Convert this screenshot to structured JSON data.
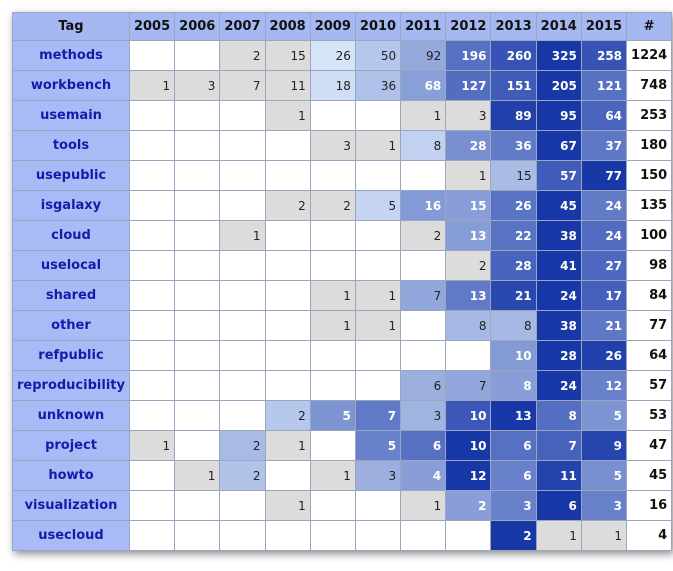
{
  "table": {
    "columns": [
      "Tag",
      2005,
      2006,
      2007,
      2008,
      2009,
      2010,
      2011,
      2012,
      2013,
      2014,
      2015,
      "#"
    ],
    "rows": [
      {
        "tag": "methods",
        "counts": [
          null,
          null,
          2,
          15,
          26,
          50,
          92,
          196,
          260,
          325,
          258
        ],
        "total": 1224
      },
      {
        "tag": "workbench",
        "counts": [
          1,
          3,
          7,
          11,
          18,
          36,
          68,
          127,
          151,
          205,
          121
        ],
        "total": 748
      },
      {
        "tag": "usemain",
        "counts": [
          null,
          null,
          null,
          1,
          null,
          null,
          1,
          3,
          89,
          95,
          64
        ],
        "total": 253
      },
      {
        "tag": "tools",
        "counts": [
          null,
          null,
          null,
          null,
          3,
          1,
          8,
          28,
          36,
          67,
          37
        ],
        "total": 180
      },
      {
        "tag": "usepublic",
        "counts": [
          null,
          null,
          null,
          null,
          null,
          null,
          null,
          1,
          15,
          57,
          77
        ],
        "total": 150
      },
      {
        "tag": "isgalaxy",
        "counts": [
          null,
          null,
          null,
          2,
          2,
          5,
          16,
          15,
          26,
          45,
          24
        ],
        "total": 135
      },
      {
        "tag": "cloud",
        "counts": [
          null,
          null,
          1,
          null,
          null,
          null,
          2,
          13,
          22,
          38,
          24
        ],
        "total": 100
      },
      {
        "tag": "uselocal",
        "counts": [
          null,
          null,
          null,
          null,
          null,
          null,
          null,
          2,
          28,
          41,
          27
        ],
        "total": 98
      },
      {
        "tag": "shared",
        "counts": [
          null,
          null,
          null,
          null,
          1,
          1,
          7,
          13,
          21,
          24,
          17
        ],
        "total": 84
      },
      {
        "tag": "other",
        "counts": [
          null,
          null,
          null,
          null,
          1,
          1,
          null,
          8,
          8,
          38,
          21
        ],
        "total": 77
      },
      {
        "tag": "refpublic",
        "counts": [
          null,
          null,
          null,
          null,
          null,
          null,
          null,
          null,
          10,
          28,
          26
        ],
        "total": 64
      },
      {
        "tag": "reproducibility",
        "counts": [
          null,
          null,
          null,
          null,
          null,
          null,
          6,
          7,
          8,
          24,
          12
        ],
        "total": 57
      },
      {
        "tag": "unknown",
        "counts": [
          null,
          null,
          null,
          2,
          5,
          7,
          3,
          10,
          13,
          8,
          5
        ],
        "total": 53
      },
      {
        "tag": "project",
        "counts": [
          1,
          null,
          2,
          1,
          null,
          5,
          6,
          10,
          6,
          7,
          9
        ],
        "total": 47
      },
      {
        "tag": "howto",
        "counts": [
          null,
          1,
          2,
          null,
          1,
          3,
          4,
          12,
          6,
          11,
          5
        ],
        "total": 45
      },
      {
        "tag": "visualization",
        "counts": [
          null,
          null,
          null,
          1,
          null,
          null,
          1,
          2,
          3,
          6,
          3
        ],
        "total": 16
      },
      {
        "tag": "usecloud",
        "counts": [
          null,
          null,
          null,
          null,
          null,
          null,
          null,
          null,
          2,
          1,
          1
        ],
        "total": 4
      }
    ]
  }
}
